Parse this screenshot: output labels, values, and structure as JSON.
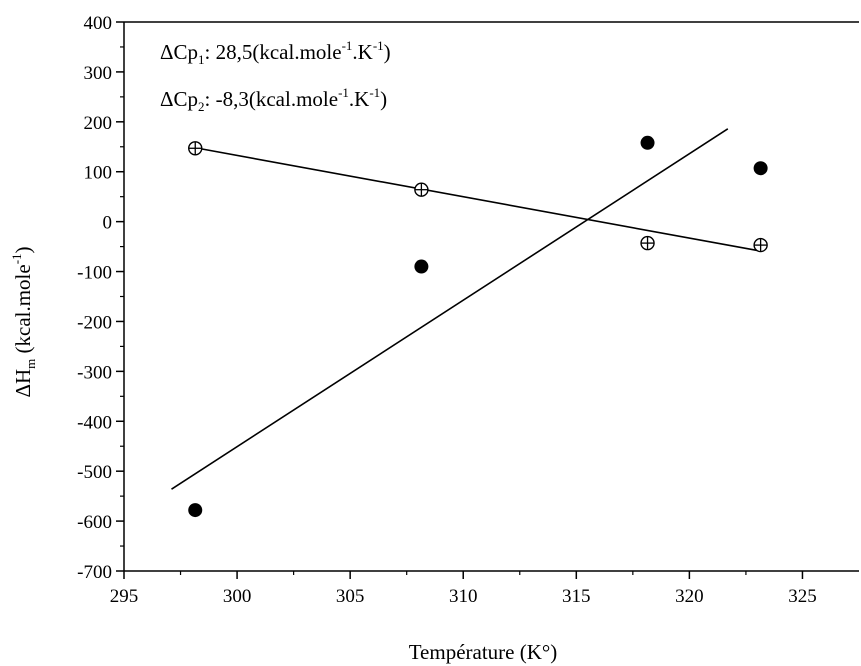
{
  "chart_data": {
    "type": "scatter",
    "xlabel": "Température (K°)",
    "ylabel": {
      "base": "ΔH",
      "sub": "m",
      "main": " (kcal.mole",
      "sup": "-1",
      "close": ")"
    },
    "xlim": [
      295,
      327.5
    ],
    "ylim": [
      -700,
      400
    ],
    "xticks": [
      295,
      300,
      305,
      310,
      315,
      320,
      325
    ],
    "yticks": [
      -700,
      -600,
      -500,
      -400,
      -300,
      -200,
      -100,
      0,
      100,
      200,
      300,
      400
    ],
    "grid": false,
    "series": [
      {
        "marker": "filled-circle",
        "color": "#000000",
        "points": [
          [
            298.15,
            -578
          ],
          [
            308.15,
            -90
          ],
          [
            318.15,
            158
          ],
          [
            323.15,
            107
          ]
        ],
        "fit": {
          "x": [
            297.1,
            321.7
          ],
          "y": [
            -536,
            186
          ]
        }
      },
      {
        "marker": "circle-plus",
        "color": "#000000",
        "points": [
          [
            298.15,
            147
          ],
          [
            308.15,
            64
          ],
          [
            318.15,
            -43
          ],
          [
            323.15,
            -47
          ]
        ],
        "fit": {
          "x": [
            298.15,
            323.15
          ],
          "y": [
            148,
            -59
          ]
        }
      }
    ],
    "annotations": [
      {
        "prefix": "ΔCp",
        "sub": "1",
        "mid1": ": 28,5(kcal.mole",
        "sup1": "-1",
        "mid2": ".K",
        "sup2": "-1",
        "end": ")"
      },
      {
        "prefix": "ΔCp",
        "sub": "2",
        "mid1": ": -8,3(kcal.mole",
        "sup1": "-1",
        "mid2": ".K",
        "sup2": "-1",
        "end": ")"
      }
    ]
  }
}
